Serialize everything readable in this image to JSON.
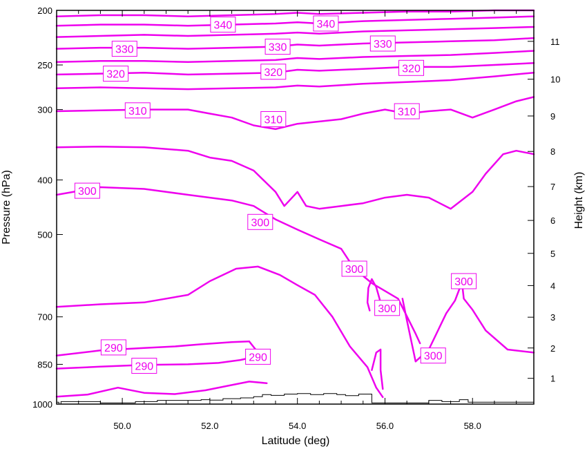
{
  "chart_data": {
    "type": "line",
    "title": "",
    "xlabel": "Latitude (deg)",
    "ylabel": "Pressure (hPa)",
    "y2label": "Height (km)",
    "xlim": [
      48.5,
      59.4
    ],
    "ylim": [
      1000,
      200
    ],
    "yscale": "log",
    "grid": false,
    "x_ticks": [
      {
        "value": 50.0,
        "label": "50.0"
      },
      {
        "value": 52.0,
        "label": "52.0"
      },
      {
        "value": 54.0,
        "label": "54.0"
      },
      {
        "value": 56.0,
        "label": "56.0"
      },
      {
        "value": 58.0,
        "label": "58.0"
      }
    ],
    "y_ticks": [
      {
        "value": 200,
        "label": "200"
      },
      {
        "value": 250,
        "label": "250"
      },
      {
        "value": 300,
        "label": "300"
      },
      {
        "value": 400,
        "label": "400"
      },
      {
        "value": 500,
        "label": "500"
      },
      {
        "value": 700,
        "label": "700"
      },
      {
        "value": 850,
        "label": "850"
      },
      {
        "value": 1000,
        "label": "1000"
      }
    ],
    "height_ticks": [
      {
        "value": 1,
        "pressure": 900,
        "label": "1"
      },
      {
        "value": 2,
        "pressure": 795,
        "label": "2"
      },
      {
        "value": 3,
        "pressure": 701,
        "label": "3"
      },
      {
        "value": 4,
        "pressure": 616,
        "label": "4"
      },
      {
        "value": 5,
        "pressure": 540,
        "label": "5"
      },
      {
        "value": 6,
        "pressure": 472,
        "label": "6"
      },
      {
        "value": 7,
        "pressure": 411,
        "label": "7"
      },
      {
        "value": 8,
        "pressure": 356,
        "label": "8"
      },
      {
        "value": 9,
        "pressure": 308,
        "label": "9"
      },
      {
        "value": 10,
        "pressure": 265,
        "label": "10"
      },
      {
        "value": 11,
        "pressure": 227,
        "label": "11"
      }
    ],
    "contour_color": "#ee00ee",
    "terrain_color": "#000000",
    "series": [
      {
        "level": 290,
        "x": [
          48.5,
          49.2,
          49.9,
          50.5,
          51.2,
          51.9,
          52.5,
          52.9,
          53.3
        ],
        "y": [
          970,
          962,
          935,
          955,
          960,
          945,
          925,
          912,
          918
        ]
      },
      {
        "level": 290,
        "x": [
          48.5,
          49.5,
          50.5,
          51.2,
          51.8,
          52.5,
          52.9
        ],
        "y": [
          820,
          803,
          795,
          790,
          783,
          776,
          774
        ]
      },
      {
        "level": 290,
        "x": [
          52.9,
          53.0,
          53.1,
          53.0,
          52.7,
          52.2,
          51.5,
          50.5,
          49.5,
          48.5
        ],
        "y": [
          774,
          792,
          810,
          825,
          835,
          845,
          850,
          852,
          858,
          865
        ]
      },
      {
        "level": 300,
        "x": [
          48.5,
          49.5,
          50.5,
          51.5,
          52.0,
          52.6,
          53.1,
          53.6,
          54.0,
          54.4,
          54.8,
          55.2,
          55.6,
          55.8,
          55.95
        ],
        "y": [
          672,
          665,
          660,
          640,
          605,
          575,
          570,
          590,
          615,
          640,
          700,
          790,
          860,
          935,
          972
        ]
      },
      {
        "level": 300,
        "x": [
          55.7,
          55.8,
          55.9,
          55.9,
          55.95
        ],
        "y": [
          870,
          810,
          800,
          870,
          940
        ]
      },
      {
        "level": 300,
        "x": [
          55.65,
          55.6,
          55.62,
          55.7,
          55.8,
          55.9,
          56.0,
          56.05
        ],
        "y": [
          682,
          660,
          622,
          600,
          620,
          660,
          675,
          690
        ]
      },
      {
        "level": 300,
        "x": [
          56.4,
          56.5,
          56.7,
          57.0,
          57.4,
          57.6,
          57.7,
          57.75,
          57.8,
          58.0,
          58.3,
          58.8,
          59.4
        ],
        "y": [
          650,
          710,
          840,
          800,
          690,
          655,
          625,
          600,
          650,
          680,
          740,
          800,
          810
        ]
      },
      {
        "level": 300,
        "x": [
          48.5,
          49.5,
          50.5,
          51.5,
          52.0,
          52.5,
          53.0,
          53.5,
          54.0,
          54.5,
          55.0,
          55.3,
          55.7,
          56.3,
          56.7,
          56.8
        ],
        "y": [
          425,
          412,
          415,
          425,
          430,
          435,
          445,
          470,
          490,
          510,
          530,
          575,
          610,
          650,
          750,
          780
        ]
      },
      {
        "level": 300,
        "x": [
          48.5,
          49.5,
          50.5,
          51.5,
          52.0,
          52.5,
          53.0,
          53.5,
          53.7,
          54.0,
          54.2,
          54.5,
          55.0,
          55.5,
          56.0,
          56.5,
          57.0,
          57.5,
          58.0,
          58.3,
          58.7,
          59.0,
          59.4
        ],
        "y": [
          350,
          349,
          350,
          355,
          365,
          370,
          385,
          420,
          445,
          420,
          445,
          450,
          445,
          440,
          430,
          425,
          430,
          450,
          420,
          390,
          360,
          355,
          360
        ]
      },
      {
        "level": 310,
        "x": [
          48.5,
          49.5,
          50.5,
          51.5,
          52.0,
          52.5,
          53.0,
          53.5,
          54.0,
          54.5,
          55.0,
          55.5,
          56.0,
          56.5,
          57.0,
          57.5,
          58.0,
          58.5,
          59.0,
          59.4
        ],
        "y": [
          302,
          301,
          300,
          300,
          305,
          310,
          320,
          325,
          318,
          315,
          312,
          305,
          300,
          305,
          302,
          300,
          310,
          300,
          290,
          285
        ]
      },
      {
        "level": 320,
        "x": [
          48.5,
          49.5,
          50.5,
          51.5,
          52.5,
          53.5,
          54.0,
          54.5,
          55.5,
          56.5,
          57.5,
          58.5,
          59.4
        ],
        "y": [
          275,
          274,
          275,
          276,
          275,
          274,
          272,
          273,
          270,
          268,
          266,
          262,
          258
        ]
      },
      {
        "level": 320,
        "x": [
          48.5,
          49.5,
          50.5,
          51.5,
          52.5,
          53.5,
          54.0,
          54.5,
          55.5,
          56.5,
          57.5,
          58.5,
          59.4
        ],
        "y": [
          260,
          259,
          258,
          260,
          259,
          258,
          255,
          256,
          254,
          252,
          252,
          250,
          248
        ]
      },
      {
        "level": 330,
        "x": [
          48.5,
          49.5,
          50.5,
          51.5,
          52.5,
          53.5,
          54.0,
          54.5,
          55.5,
          56.5,
          57.5,
          58.5,
          59.4
        ],
        "y": [
          247,
          246,
          246,
          247,
          246,
          245,
          243,
          244,
          242,
          241,
          240,
          238,
          236
        ]
      },
      {
        "level": 330,
        "x": [
          48.5,
          49.5,
          50.5,
          51.5,
          52.5,
          53.5,
          54.0,
          54.5,
          55.5,
          56.5,
          57.5,
          58.5,
          59.4
        ],
        "y": [
          234,
          233,
          233,
          234,
          233,
          232,
          230,
          231,
          229,
          228,
          227,
          226,
          224
        ]
      },
      {
        "level": 340,
        "x": [
          48.5,
          49.5,
          50.5,
          51.5,
          52.5,
          53.5,
          54.0,
          54.5,
          55.5,
          56.5,
          57.5,
          58.5,
          59.4
        ],
        "y": [
          223,
          222,
          221,
          222,
          221,
          220,
          219,
          220,
          218,
          217,
          216,
          215,
          214
        ]
      },
      {
        "level": 340,
        "x": [
          48.5,
          49.5,
          50.5,
          51.5,
          52.5,
          53.5,
          54.0,
          54.5,
          55.5,
          56.5,
          57.5,
          58.5,
          59.4
        ],
        "y": [
          213,
          212,
          212,
          213,
          212,
          211,
          210,
          211,
          209,
          208,
          207,
          206,
          205
        ]
      },
      {
        "level": 340,
        "x": [
          48.5,
          49.5,
          50.5,
          51.5,
          52.5,
          53.5,
          54.0,
          54.5,
          55.5,
          56.5,
          57.5,
          58.5,
          59.4
        ],
        "y": [
          205,
          204,
          204,
          205,
          204,
          203,
          202,
          203,
          202,
          201,
          201,
          200,
          200
        ]
      }
    ],
    "contour_labels": [
      {
        "text": "340",
        "x": 52.3,
        "y": 212
      },
      {
        "text": "340",
        "x": 54.65,
        "y": 211
      },
      {
        "text": "330",
        "x": 50.05,
        "y": 234
      },
      {
        "text": "330",
        "x": 53.55,
        "y": 232
      },
      {
        "text": "330",
        "x": 55.95,
        "y": 229
      },
      {
        "text": "320",
        "x": 49.85,
        "y": 259
      },
      {
        "text": "320",
        "x": 53.45,
        "y": 257
      },
      {
        "text": "320",
        "x": 56.6,
        "y": 253
      },
      {
        "text": "310",
        "x": 50.35,
        "y": 301
      },
      {
        "text": "310",
        "x": 53.45,
        "y": 312
      },
      {
        "text": "310",
        "x": 56.5,
        "y": 302
      },
      {
        "text": "300",
        "x": 49.2,
        "y": 418
      },
      {
        "text": "300",
        "x": 53.15,
        "y": 475
      },
      {
        "text": "300",
        "x": 55.3,
        "y": 575
      },
      {
        "text": "300",
        "x": 56.05,
        "y": 675
      },
      {
        "text": "300",
        "x": 57.8,
        "y": 605
      },
      {
        "text": "300",
        "x": 57.1,
        "y": 820
      },
      {
        "text": "290",
        "x": 49.8,
        "y": 793
      },
      {
        "text": "290",
        "x": 50.5,
        "y": 855
      },
      {
        "text": "290",
        "x": 53.1,
        "y": 824
      }
    ],
    "terrain": {
      "x": [
        48.5,
        48.55,
        48.55,
        48.6,
        48.6,
        49.5,
        49.5,
        50.3,
        50.3,
        50.8,
        50.8,
        51.8,
        51.8,
        52.0,
        52.0,
        52.3,
        52.3,
        52.7,
        52.7,
        53.0,
        53.0,
        53.2,
        53.2,
        53.4,
        53.4,
        53.7,
        53.7,
        54.0,
        54.0,
        54.3,
        54.3,
        54.6,
        54.6,
        54.9,
        54.9,
        55.1,
        55.1,
        55.4,
        55.4,
        55.7,
        55.7,
        57.0,
        57.0,
        57.3,
        57.3,
        57.7,
        57.7,
        57.9,
        57.9,
        59.4
      ],
      "y": [
        992,
        992,
        1000,
        1000,
        990,
        990,
        995,
        995,
        990,
        990,
        985,
        985,
        982,
        982,
        984,
        984,
        978,
        978,
        975,
        975,
        970,
        970,
        962,
        962,
        965,
        965,
        960,
        960,
        958,
        958,
        962,
        962,
        958,
        958,
        962,
        962,
        966,
        966,
        960,
        960,
        995,
        995,
        985,
        985,
        990,
        990,
        982,
        982,
        992,
        992
      ]
    }
  }
}
